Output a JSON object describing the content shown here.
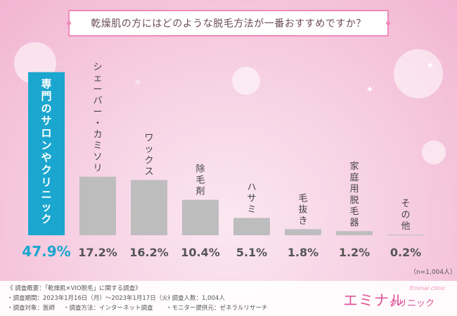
{
  "title": "乾燥肌の方にはどのような脱毛方法が一番おすすめですか？",
  "note": "（n=1,004人）",
  "colors": {
    "highlight": "#1aa6cf",
    "bar": "#bdbdbd",
    "accent": "#e0579a"
  },
  "chart_data": {
    "type": "bar",
    "categories": [
      "専門のサロンやクリニック",
      "シェーバー・カミソリ",
      "ワックス",
      "除毛剤",
      "ハサミ",
      "毛抜き",
      "家庭用脱毛器",
      "その他"
    ],
    "values": [
      47.9,
      17.2,
      16.2,
      10.4,
      5.1,
      1.8,
      1.2,
      0.2
    ],
    "value_labels": [
      "47.9%",
      "17.2%",
      "16.2%",
      "10.4%",
      "5.1%",
      "1.8%",
      "1.2%",
      "0.2%"
    ],
    "highlight_index": 0,
    "ylim": [
      0,
      50
    ],
    "grid": false
  },
  "footer": {
    "line1": "《 調査概要：「乾燥肌×VIO脱毛」に関する調査》",
    "period": "・調査期間：2023年1月16日（月）～2023年1月17日（火）",
    "people": "・調査人数：1,004人",
    "target": "・調査対象：医師",
    "method": "・調査方法：インターネット調査",
    "monitor": "・モニター提供元：ゼネラルリサーチ"
  },
  "logo": {
    "main": "エミナル",
    "sub": "クリニック",
    "small": "Eminal clinic"
  }
}
